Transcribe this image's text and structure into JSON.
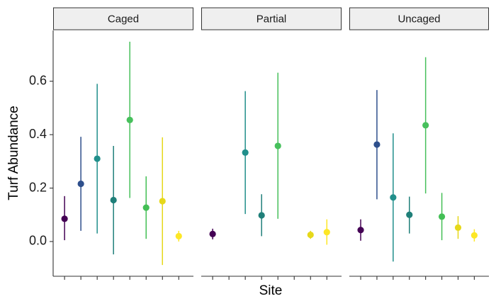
{
  "chart_data": {
    "type": "scatter",
    "xlabel": "Site",
    "ylabel": "Turf Abundance",
    "ylim": [
      -0.13,
      0.79
    ],
    "yticks": [
      0.0,
      0.2,
      0.4,
      0.6
    ],
    "ytick_labels": [
      "0.0",
      "0.2",
      "0.4",
      "0.6"
    ],
    "grid": false,
    "legend": "none",
    "site_count": 8,
    "site_colors": [
      "#440154",
      "#2e4f8c",
      "#218f8b",
      "#1f7f79",
      "#47c05c",
      "#43bf55",
      "#e6d81a",
      "#fde725"
    ],
    "panels": [
      {
        "label": "Caged",
        "points": [
          {
            "site": 1,
            "mean": 0.085,
            "low": 0.005,
            "high": 0.17
          },
          {
            "site": 2,
            "mean": 0.216,
            "low": 0.04,
            "high": 0.392
          },
          {
            "site": 3,
            "mean": 0.31,
            "low": 0.03,
            "high": 0.59
          },
          {
            "site": 4,
            "mean": 0.155,
            "low": -0.048,
            "high": 0.358
          },
          {
            "site": 5,
            "mean": 0.455,
            "low": 0.163,
            "high": 0.748
          },
          {
            "site": 6,
            "mean": 0.127,
            "low": 0.01,
            "high": 0.244
          },
          {
            "site": 7,
            "mean": 0.151,
            "low": -0.088,
            "high": 0.39
          },
          {
            "site": 8,
            "mean": 0.02,
            "low": 0.0,
            "high": 0.04
          }
        ]
      },
      {
        "label": "Partial",
        "points": [
          {
            "site": 1,
            "mean": 0.028,
            "low": 0.008,
            "high": 0.048
          },
          {
            "site": 3,
            "mean": 0.333,
            "low": 0.103,
            "high": 0.563
          },
          {
            "site": 4,
            "mean": 0.098,
            "low": 0.02,
            "high": 0.177
          },
          {
            "site": 5,
            "mean": 0.358,
            "low": 0.085,
            "high": 0.632
          },
          {
            "site": 7,
            "mean": 0.025,
            "low": 0.01,
            "high": 0.04
          },
          {
            "site": 8,
            "mean": 0.035,
            "low": -0.012,
            "high": 0.083
          }
        ]
      },
      {
        "label": "Uncaged",
        "points": [
          {
            "site": 1,
            "mean": 0.043,
            "low": 0.003,
            "high": 0.083
          },
          {
            "site": 2,
            "mean": 0.363,
            "low": 0.158,
            "high": 0.567
          },
          {
            "site": 3,
            "mean": 0.165,
            "low": -0.075,
            "high": 0.405
          },
          {
            "site": 4,
            "mean": 0.1,
            "low": 0.03,
            "high": 0.168
          },
          {
            "site": 5,
            "mean": 0.435,
            "low": 0.18,
            "high": 0.69
          },
          {
            "site": 6,
            "mean": 0.093,
            "low": 0.005,
            "high": 0.182
          },
          {
            "site": 7,
            "mean": 0.052,
            "low": 0.01,
            "high": 0.095
          },
          {
            "site": 8,
            "mean": 0.023,
            "low": 0.0,
            "high": 0.046
          }
        ]
      }
    ]
  }
}
